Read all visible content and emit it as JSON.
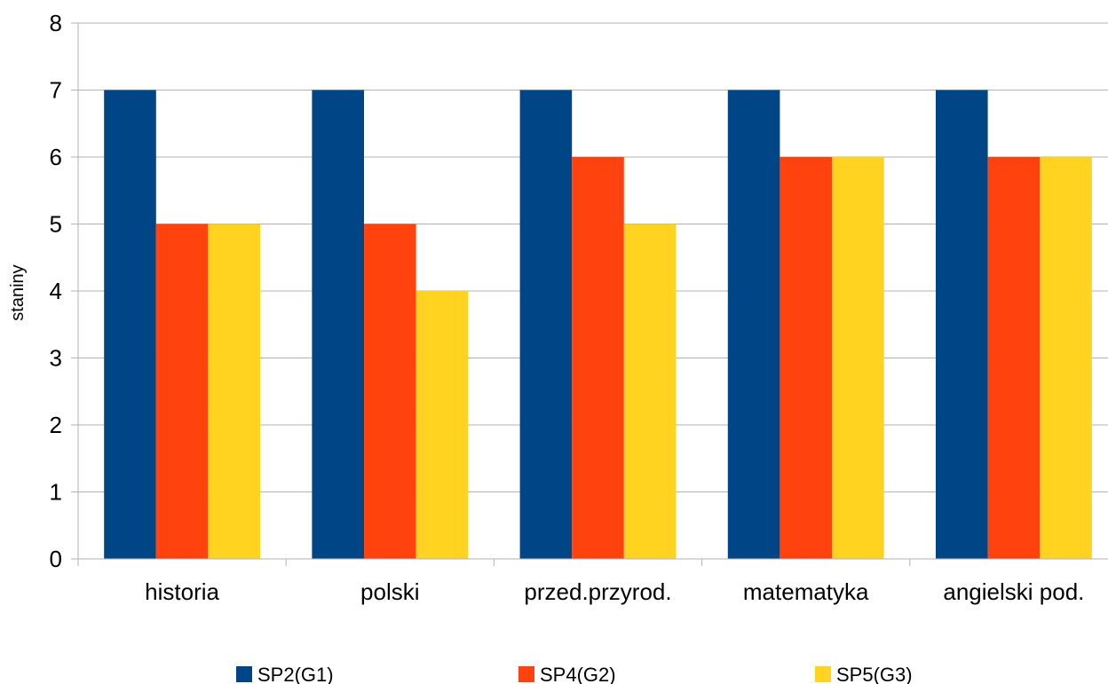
{
  "chart_data": {
    "type": "bar",
    "title": "",
    "xlabel": "",
    "ylabel": "staniny",
    "ylim": [
      0,
      8
    ],
    "yticks": [
      "0",
      "1",
      "2",
      "3",
      "4",
      "5",
      "6",
      "7",
      "8"
    ],
    "grid": "horizontal",
    "legend_position": "bottom",
    "categories": [
      "historia",
      "polski",
      "przed.przyrod.",
      "matematyka",
      "angielski pod."
    ],
    "series": [
      {
        "name": "SP2(G1)",
        "color": "#004586",
        "values": [
          7,
          7,
          7,
          7,
          7
        ]
      },
      {
        "name": "SP4(G2)",
        "color": "#ff420e",
        "values": [
          5,
          5,
          6,
          6,
          6
        ]
      },
      {
        "name": "SP5(G3)",
        "color": "#ffd320",
        "values": [
          5,
          4,
          5,
          6,
          6
        ]
      }
    ]
  }
}
